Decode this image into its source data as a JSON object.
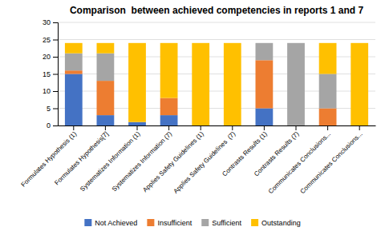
{
  "chart_data": {
    "type": "bar",
    "stacked": true,
    "title": "Comparison  between achieved competencies in reports 1 and 7",
    "categories": [
      "Formulates Hypothesis (1)",
      "Formulates Hypothesis[7]",
      "Systematizes Information (1)",
      "Systematizes Information (7)",
      "Applies Safety Guidelines (1)",
      "Applies Safety Guidelines  (7)",
      "Contrasts Results (1)",
      "Contrasts Results (7)",
      "Communicates Conclusions...",
      "Communicates Conclusions..."
    ],
    "series": [
      {
        "name": "Not Achieved",
        "color": "#4472C4",
        "values": [
          15,
          3,
          1,
          3,
          0,
          0,
          5,
          0,
          0,
          0
        ]
      },
      {
        "name": "Insufficient",
        "color": "#ED7D31",
        "values": [
          1,
          10,
          0,
          5,
          0,
          0,
          14,
          0,
          5,
          0
        ]
      },
      {
        "name": "Sufficient",
        "color": "#A5A5A5",
        "values": [
          5,
          8,
          0,
          0,
          0,
          0,
          5,
          24,
          10,
          0
        ]
      },
      {
        "name": "Outstanding",
        "color": "#FFC000",
        "values": [
          3,
          3,
          23,
          16,
          24,
          24,
          0,
          0,
          9,
          24
        ]
      }
    ],
    "ylim": [
      0,
      30
    ],
    "yticks": [
      0,
      5,
      10,
      15,
      20,
      25,
      30
    ],
    "grid": true,
    "legend": "bottom"
  }
}
